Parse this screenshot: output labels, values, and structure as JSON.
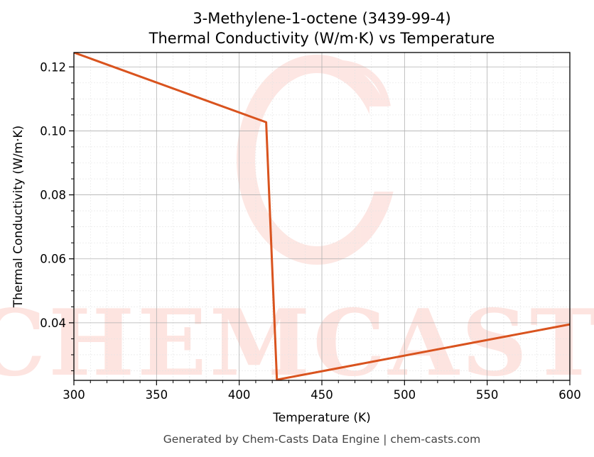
{
  "chart_data": {
    "type": "line",
    "title": "3-Methylene-1-octene (3439-99-4)",
    "subtitle": "Thermal Conductivity (W/m·K) vs Temperature",
    "xlabel": "Temperature (K)",
    "ylabel": "Thermal Conductivity (W/m·K)",
    "xlim": [
      300,
      600
    ],
    "ylim": [
      0.022,
      0.1245
    ],
    "xticks": [
      300,
      350,
      400,
      450,
      500,
      550,
      600
    ],
    "yticks": [
      0.04,
      0.06,
      0.08,
      0.1,
      0.12
    ],
    "ytick_labels": [
      "0.04",
      "0.06",
      "0.08",
      "0.10",
      "0.12"
    ],
    "grid": true,
    "series": [
      {
        "color": "#d9531e",
        "x": [
          300,
          416.3,
          422.8,
          600
        ],
        "y": [
          0.1245,
          0.1027,
          0.0222,
          0.0395
        ]
      }
    ],
    "watermark": "CHEMCASTS",
    "footer": "Generated by Chem-Casts Data Engine | chem-casts.com"
  }
}
